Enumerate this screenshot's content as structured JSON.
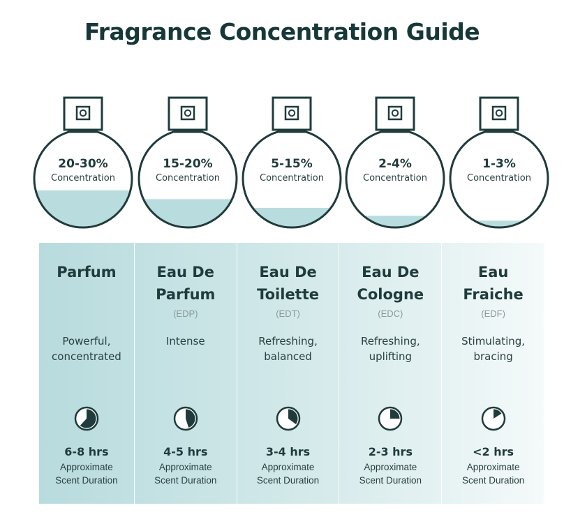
{
  "title": "Fragrance Concentration Guide",
  "colors": {
    "dark_teal": "#1f3b3b",
    "liquid": "#b9dcde",
    "panel_start": "#b8dbdd",
    "panel_end": "#f5fafa"
  },
  "types": [
    {
      "concentration": "20-30%",
      "concentration_label": "Concentration",
      "fill_fraction": 0.38,
      "name_lines": [
        "Parfum"
      ],
      "abbr": "",
      "desc_lines": [
        "Powerful,",
        "concentrated"
      ],
      "clock_fraction": 0.62,
      "hours": "6-8 hrs",
      "duration_lines": [
        "Approximate",
        "Scent Duration"
      ]
    },
    {
      "concentration": "15-20%",
      "concentration_label": "Concentration",
      "fill_fraction": 0.29,
      "name_lines": [
        "Eau De",
        "Parfum"
      ],
      "abbr": "(EDP)",
      "desc_lines": [
        "Intense"
      ],
      "clock_fraction": 0.45,
      "hours": "4-5 hrs",
      "duration_lines": [
        "Approximate",
        "Scent Duration"
      ]
    },
    {
      "concentration": "5-15%",
      "concentration_label": "Concentration",
      "fill_fraction": 0.2,
      "name_lines": [
        "Eau De",
        "Toilette"
      ],
      "abbr": "(EDT)",
      "desc_lines": [
        "Refreshing,",
        "balanced"
      ],
      "clock_fraction": 0.35,
      "hours": "3-4 hrs",
      "duration_lines": [
        "Approximate",
        "Scent Duration"
      ]
    },
    {
      "concentration": "2-4%",
      "concentration_label": "Concentration",
      "fill_fraction": 0.12,
      "name_lines": [
        "Eau De",
        "Cologne"
      ],
      "abbr": "(EDC)",
      "desc_lines": [
        "Refreshing,",
        "uplifting"
      ],
      "clock_fraction": 0.25,
      "hours": "2-3 hrs",
      "duration_lines": [
        "Approximate",
        "Scent Duration"
      ]
    },
    {
      "concentration": "1-3%",
      "concentration_label": "Concentration",
      "fill_fraction": 0.07,
      "name_lines": [
        "Eau",
        "Fraiche"
      ],
      "abbr": "(EDF)",
      "desc_lines": [
        "Stimulating,",
        "bracing"
      ],
      "clock_fraction": 0.16,
      "hours": "<2 hrs",
      "duration_lines": [
        "Approximate",
        "Scent Duration"
      ]
    }
  ]
}
